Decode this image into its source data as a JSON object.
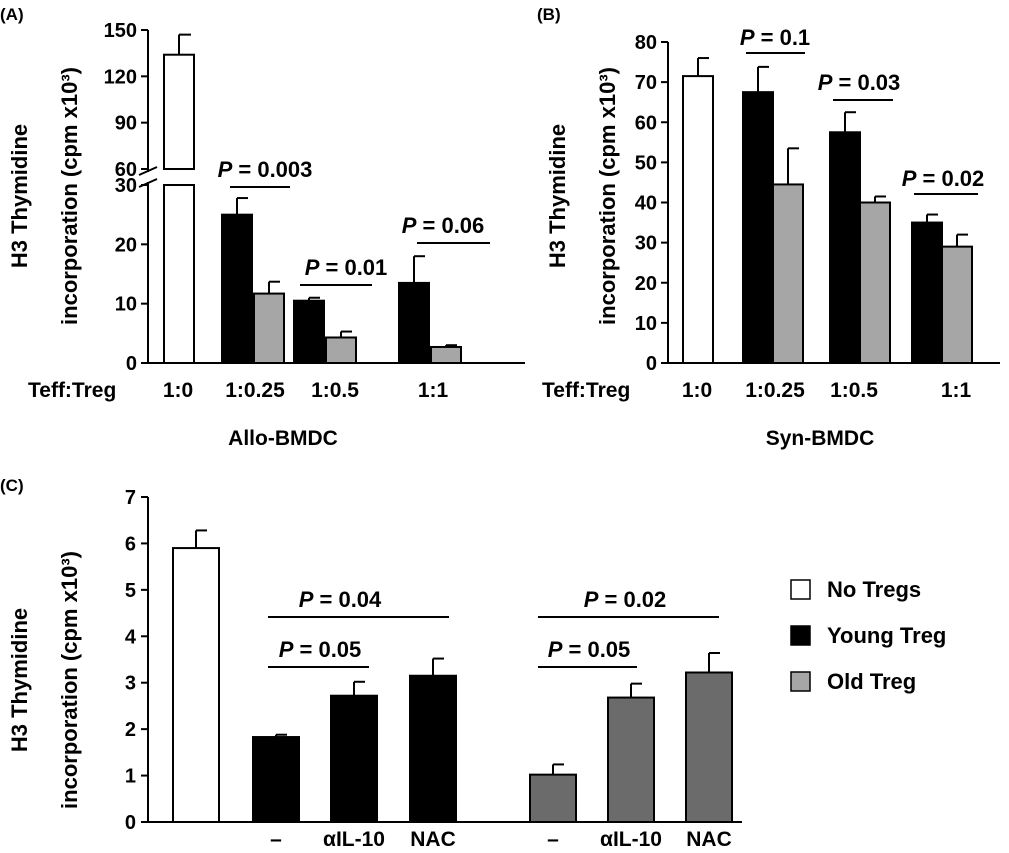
{
  "colors": {
    "white_bar": "#ffffff",
    "black_bar": "#000000",
    "gray_bar": "#a6a6a6",
    "dark_gray_bar": "#6b6b6b"
  },
  "legend": {
    "position": "right",
    "entries": [
      {
        "label": "No Tregs",
        "color": "#ffffff"
      },
      {
        "label": "Young Treg",
        "color": "#000000"
      },
      {
        "label": "Old Treg",
        "color": "#a6a6a6"
      }
    ]
  },
  "chart_data": [
    {
      "panel": "(A)",
      "type": "bar",
      "ylabel": "H3 Thymidine incorporation (cpm x10³)",
      "ylabel_lines": [
        "H3 Thymidine",
        "incorporation (cpm x10³)"
      ],
      "xlabel": "Allo-BMDC",
      "row_label": "Teff:Treg",
      "categories": [
        "1:0",
        "1:0.25",
        "1:0.5",
        "1:1"
      ],
      "axis_break": {
        "lower": [
          0,
          30
        ],
        "upper": [
          60,
          150
        ]
      },
      "yticks": [
        0,
        10,
        20,
        30,
        60,
        90,
        120,
        150
      ],
      "series": [
        {
          "color": "white",
          "values": [
            134,
            null,
            null,
            null
          ],
          "errors": [
            13,
            null,
            null,
            null
          ]
        },
        {
          "color": "black",
          "values": [
            null,
            25,
            10.5,
            13.5
          ],
          "errors": [
            null,
            2.8,
            0.5,
            4.5
          ]
        },
        {
          "color": "gray",
          "values": [
            null,
            11.7,
            4.3,
            2.7
          ],
          "errors": [
            null,
            2.0,
            1.0,
            0.3
          ]
        }
      ],
      "annotations": [
        {
          "text": "P = 0.003",
          "category": "1:0.25"
        },
        {
          "text": "P = 0.01",
          "category": "1:0.5"
        },
        {
          "text": "P = 0.06",
          "category": "1:1"
        }
      ]
    },
    {
      "panel": "(B)",
      "type": "bar",
      "ylabel": "H3 Thymidine incorporation (cpm x10³)",
      "ylabel_lines": [
        "H3 Thymidine",
        "incorporation (cpm x10³)"
      ],
      "xlabel": "Syn-BMDC",
      "row_label": "Teff:Treg",
      "categories": [
        "1:0",
        "1:0.25",
        "1:0.5",
        "1:1"
      ],
      "ylim": [
        0,
        80
      ],
      "yticks": [
        0,
        10,
        20,
        30,
        40,
        50,
        60,
        70,
        80
      ],
      "series": [
        {
          "color": "white",
          "values": [
            71.5,
            null,
            null,
            null
          ],
          "errors": [
            4.5,
            null,
            null,
            null
          ]
        },
        {
          "color": "black",
          "values": [
            null,
            67.5,
            57.5,
            35
          ],
          "errors": [
            null,
            6.3,
            5,
            2
          ]
        },
        {
          "color": "gray",
          "values": [
            null,
            44.5,
            40,
            29
          ],
          "errors": [
            null,
            9,
            1.5,
            3
          ]
        }
      ],
      "annotations": [
        {
          "text": "P = 0.1",
          "category": "1:0.25"
        },
        {
          "text": "P = 0.03",
          "category": "1:0.5"
        },
        {
          "text": "P = 0.02",
          "category": "1:1"
        }
      ]
    },
    {
      "panel": "(C)",
      "type": "bar",
      "ylabel": "H3 Thymidine incorporation (cpm x10³)",
      "ylabel_lines": [
        "H3 Thymidine",
        "incorporation (cpm x10³)"
      ],
      "ylim": [
        0,
        7
      ],
      "yticks": [
        0,
        1,
        2,
        3,
        4,
        5,
        6,
        7
      ],
      "categories": [
        "",
        "–",
        "αIL-10",
        "NAC",
        "–",
        "αIL-10",
        "NAC"
      ],
      "values": [
        5.9,
        1.83,
        2.72,
        3.15,
        1.02,
        2.68,
        3.22
      ],
      "errors": [
        0.38,
        0.05,
        0.3,
        0.37,
        0.22,
        0.3,
        0.42
      ],
      "bar_colors": [
        "white",
        "black",
        "black",
        "black",
        "darkgray",
        "darkgray",
        "darkgray"
      ],
      "annotations": [
        {
          "text": "P = 0.04",
          "from": 1,
          "to": 3
        },
        {
          "text": "P = 0.05",
          "from": 1,
          "to": 2
        },
        {
          "text": "P = 0.02",
          "from": 4,
          "to": 6
        },
        {
          "text": "P = 0.05",
          "from": 4,
          "to": 5
        }
      ]
    }
  ]
}
